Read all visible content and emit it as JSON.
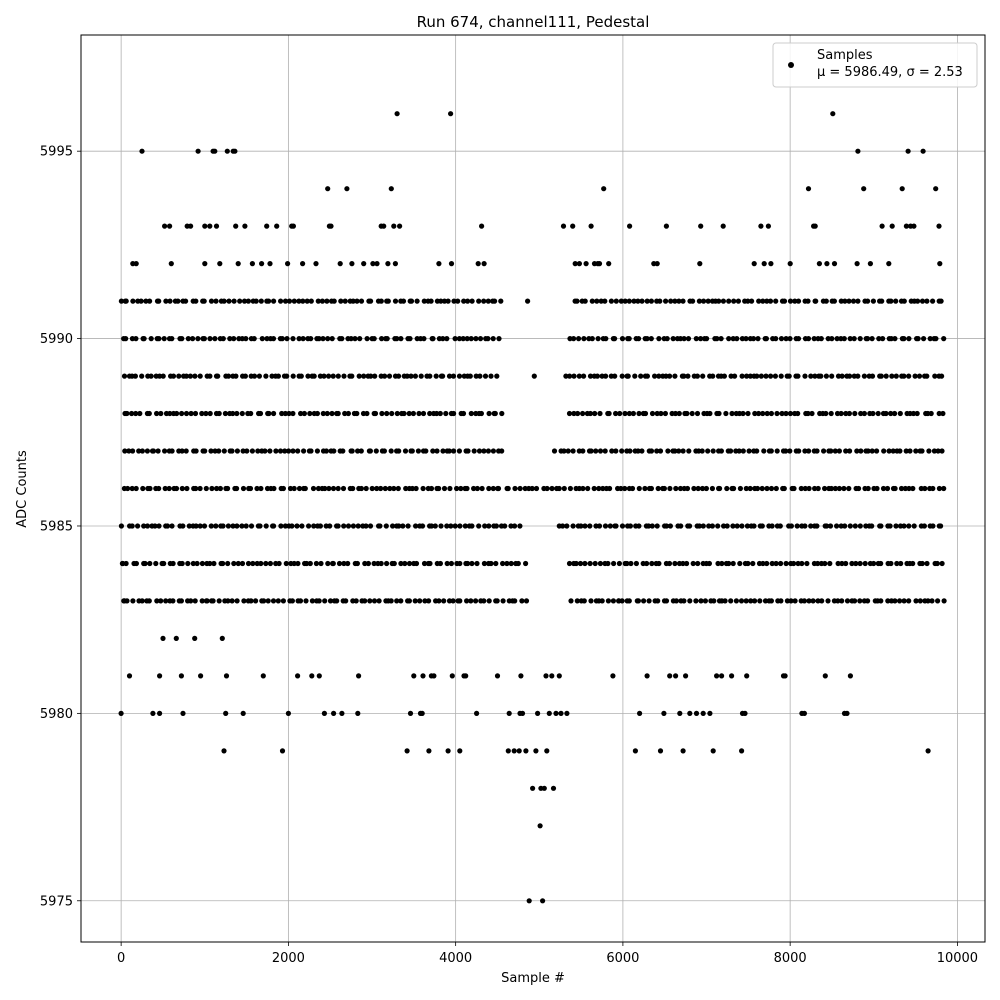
{
  "chart_data": {
    "type": "scatter",
    "title": "Run 674, channel111, Pedestal",
    "xlabel": "Sample #",
    "ylabel": "ADC Counts",
    "xlim": [
      -480,
      10330
    ],
    "ylim": [
      5973.9,
      5998.1
    ],
    "xticks": [
      0,
      2000,
      4000,
      6000,
      8000,
      10000
    ],
    "xtick_labels": [
      "0",
      "2000",
      "4000",
      "6000",
      "8000",
      "10000"
    ],
    "yticks": [
      5975,
      5980,
      5985,
      5990,
      5995
    ],
    "ytick_labels": [
      "5975",
      "5980",
      "5985",
      "5990",
      "5995"
    ],
    "grid": true,
    "legend_position": "top-right",
    "marker_color": "#000000",
    "series": [
      {
        "name": "Samples",
        "description_line": "μ = 5986.49, σ = 2.53",
        "n_samples": 9850,
        "dense_levels": {
          "y": [
            5983,
            5984,
            5985,
            5986,
            5987,
            5988,
            5989,
            5990,
            5991
          ],
          "x_ranges": [
            [
              [
                0,
                4870
              ],
              [
                5360,
                9850
              ]
            ],
            [
              [
                0,
                4850
              ],
              [
                5320,
                9850
              ]
            ],
            [
              [
                0,
                4800
              ],
              [
                5200,
                9850
              ]
            ],
            [
              [
                0,
                9850
              ]
            ],
            [
              [
                0,
                4580
              ],
              [
                5180,
                9850
              ]
            ],
            [
              [
                0,
                4580
              ],
              [
                5330,
                9850
              ]
            ],
            [
              [
                0,
                4500
              ],
              [
                5290,
                9850
              ]
            ],
            [
              [
                0,
                4550
              ],
              [
                5350,
                9850
              ]
            ],
            [
              [
                0,
                4570
              ],
              [
                5380,
                9850
              ]
            ]
          ]
        },
        "sparse_points": [
          [
            0,
            5980
          ],
          [
            20,
            5984
          ],
          [
            40,
            5983
          ],
          [
            50,
            5991
          ],
          [
            100,
            5981
          ],
          [
            140,
            5992
          ],
          [
            180,
            5992
          ],
          [
            250,
            5995
          ],
          [
            380,
            5980
          ],
          [
            460,
            5980
          ],
          [
            460,
            5981
          ],
          [
            500,
            5982
          ],
          [
            520,
            5993
          ],
          [
            580,
            5993
          ],
          [
            600,
            5992
          ],
          [
            660,
            5982
          ],
          [
            720,
            5981
          ],
          [
            740,
            5980
          ],
          [
            790,
            5993
          ],
          [
            830,
            5993
          ],
          [
            880,
            5982
          ],
          [
            920,
            5995
          ],
          [
            950,
            5981
          ],
          [
            1000,
            5993
          ],
          [
            1000,
            5992
          ],
          [
            1020,
            5983
          ],
          [
            1060,
            5993
          ],
          [
            1100,
            5995
          ],
          [
            1120,
            5995
          ],
          [
            1140,
            5993
          ],
          [
            1180,
            5992
          ],
          [
            1210,
            5982
          ],
          [
            1230,
            5979
          ],
          [
            1250,
            5980
          ],
          [
            1260,
            5981
          ],
          [
            1270,
            5995
          ],
          [
            1340,
            5995
          ],
          [
            1360,
            5995
          ],
          [
            1370,
            5993
          ],
          [
            1400,
            5992
          ],
          [
            1460,
            5980
          ],
          [
            1480,
            5993
          ],
          [
            1570,
            5992
          ],
          [
            1680,
            5992
          ],
          [
            1700,
            5981
          ],
          [
            1740,
            5993
          ],
          [
            1780,
            5992
          ],
          [
            1860,
            5993
          ],
          [
            1930,
            5979
          ],
          [
            1990,
            5992
          ],
          [
            2000,
            5980
          ],
          [
            2040,
            5993
          ],
          [
            2060,
            5993
          ],
          [
            2110,
            5981
          ],
          [
            2170,
            5992
          ],
          [
            2280,
            5981
          ],
          [
            2330,
            5992
          ],
          [
            2370,
            5981
          ],
          [
            2430,
            5980
          ],
          [
            2470,
            5994
          ],
          [
            2490,
            5993
          ],
          [
            2510,
            5993
          ],
          [
            2540,
            5980
          ],
          [
            2620,
            5992
          ],
          [
            2640,
            5980
          ],
          [
            2700,
            5994
          ],
          [
            2760,
            5992
          ],
          [
            2830,
            5980
          ],
          [
            2840,
            5981
          ],
          [
            2900,
            5992
          ],
          [
            3010,
            5992
          ],
          [
            3060,
            5992
          ],
          [
            3110,
            5993
          ],
          [
            3140,
            5993
          ],
          [
            3190,
            5992
          ],
          [
            3230,
            5994
          ],
          [
            3260,
            5993
          ],
          [
            3280,
            5992
          ],
          [
            3300,
            5996
          ],
          [
            3330,
            5993
          ],
          [
            3420,
            5979
          ],
          [
            3460,
            5980
          ],
          [
            3500,
            5981
          ],
          [
            3580,
            5980
          ],
          [
            3600,
            5980
          ],
          [
            3610,
            5981
          ],
          [
            3680,
            5979
          ],
          [
            3710,
            5981
          ],
          [
            3740,
            5981
          ],
          [
            3800,
            5992
          ],
          [
            3910,
            5979
          ],
          [
            3940,
            5996
          ],
          [
            3950,
            5992
          ],
          [
            3960,
            5981
          ],
          [
            4050,
            5979
          ],
          [
            4100,
            5981
          ],
          [
            4120,
            5981
          ],
          [
            4250,
            5980
          ],
          [
            4270,
            5992
          ],
          [
            4310,
            5993
          ],
          [
            4340,
            5992
          ],
          [
            4500,
            5981
          ],
          [
            4630,
            5979
          ],
          [
            4640,
            5980
          ],
          [
            4700,
            5979
          ],
          [
            4760,
            5979
          ],
          [
            4770,
            5980
          ],
          [
            4780,
            5981
          ],
          [
            4800,
            5980
          ],
          [
            4840,
            5979
          ],
          [
            4860,
            5991
          ],
          [
            4880,
            5975
          ],
          [
            4920,
            5978
          ],
          [
            4940,
            5989
          ],
          [
            4960,
            5979
          ],
          [
            4980,
            5980
          ],
          [
            5010,
            5977
          ],
          [
            5020,
            5978
          ],
          [
            5040,
            5975
          ],
          [
            5060,
            5978
          ],
          [
            5080,
            5981
          ],
          [
            5090,
            5979
          ],
          [
            5120,
            5980
          ],
          [
            5150,
            5981
          ],
          [
            5170,
            5978
          ],
          [
            5200,
            5980
          ],
          [
            5240,
            5981
          ],
          [
            5260,
            5980
          ],
          [
            5290,
            5993
          ],
          [
            5330,
            5980
          ],
          [
            5400,
            5993
          ],
          [
            5430,
            5992
          ],
          [
            5480,
            5992
          ],
          [
            5560,
            5992
          ],
          [
            5620,
            5993
          ],
          [
            5660,
            5992
          ],
          [
            5700,
            5992
          ],
          [
            5720,
            5992
          ],
          [
            5770,
            5994
          ],
          [
            5830,
            5992
          ],
          [
            5880,
            5981
          ],
          [
            5950,
            5983
          ],
          [
            6080,
            5993
          ],
          [
            6150,
            5979
          ],
          [
            6200,
            5980
          ],
          [
            6290,
            5981
          ],
          [
            6370,
            5992
          ],
          [
            6410,
            5992
          ],
          [
            6450,
            5979
          ],
          [
            6490,
            5980
          ],
          [
            6520,
            5993
          ],
          [
            6560,
            5981
          ],
          [
            6630,
            5981
          ],
          [
            6680,
            5980
          ],
          [
            6720,
            5979
          ],
          [
            6750,
            5981
          ],
          [
            6800,
            5980
          ],
          [
            6880,
            5980
          ],
          [
            6920,
            5992
          ],
          [
            6930,
            5993
          ],
          [
            6960,
            5980
          ],
          [
            7040,
            5980
          ],
          [
            7080,
            5979
          ],
          [
            7120,
            5981
          ],
          [
            7180,
            5981
          ],
          [
            7200,
            5993
          ],
          [
            7300,
            5981
          ],
          [
            7420,
            5979
          ],
          [
            7430,
            5980
          ],
          [
            7460,
            5980
          ],
          [
            7480,
            5981
          ],
          [
            7570,
            5992
          ],
          [
            7650,
            5993
          ],
          [
            7690,
            5992
          ],
          [
            7740,
            5993
          ],
          [
            7770,
            5992
          ],
          [
            7920,
            5981
          ],
          [
            7940,
            5981
          ],
          [
            8000,
            5992
          ],
          [
            8140,
            5980
          ],
          [
            8170,
            5980
          ],
          [
            8220,
            5994
          ],
          [
            8280,
            5993
          ],
          [
            8300,
            5993
          ],
          [
            8350,
            5992
          ],
          [
            8420,
            5981
          ],
          [
            8440,
            5992
          ],
          [
            8510,
            5996
          ],
          [
            8530,
            5992
          ],
          [
            8650,
            5980
          ],
          [
            8680,
            5980
          ],
          [
            8720,
            5981
          ],
          [
            8800,
            5992
          ],
          [
            8810,
            5995
          ],
          [
            8880,
            5994
          ],
          [
            8960,
            5992
          ],
          [
            9100,
            5993
          ],
          [
            9180,
            5992
          ],
          [
            9220,
            5993
          ],
          [
            9340,
            5994
          ],
          [
            9390,
            5993
          ],
          [
            9410,
            5995
          ],
          [
            9440,
            5993
          ],
          [
            9480,
            5993
          ],
          [
            9590,
            5995
          ],
          [
            9650,
            5979
          ],
          [
            9740,
            5994
          ],
          [
            9780,
            5993
          ],
          [
            9790,
            5992
          ]
        ]
      }
    ]
  }
}
